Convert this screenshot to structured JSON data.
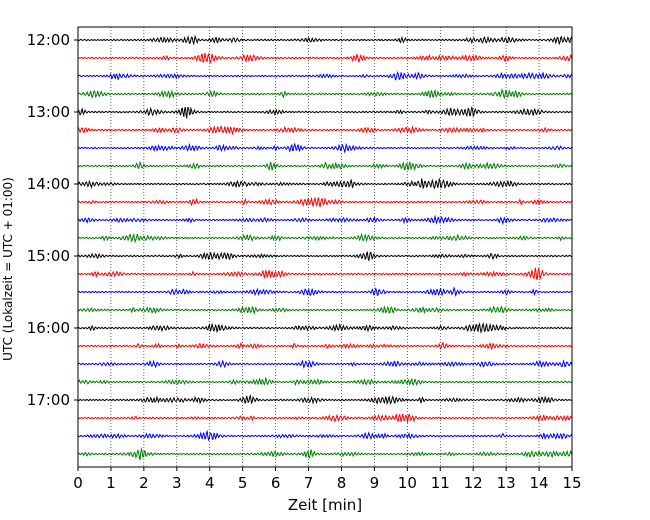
{
  "chart_data": {
    "type": "line",
    "title": "",
    "xlabel": "Zeit  [min]",
    "ylabel": "UTC (Lokalzeit = UTC + 01:00)",
    "xlim": [
      0,
      15
    ],
    "x_ticks": [
      0,
      1,
      2,
      3,
      4,
      5,
      6,
      7,
      8,
      9,
      10,
      11,
      12,
      13,
      14,
      15
    ],
    "x_tick_labels": [
      "0",
      "1",
      "2",
      "3",
      "4",
      "5",
      "6",
      "7",
      "8",
      "9",
      "10",
      "11",
      "12",
      "13",
      "14",
      "15"
    ],
    "y_ticks": [
      "12:00",
      "13:00",
      "14:00",
      "15:00",
      "16:00",
      "17:00"
    ],
    "grid": "vertical dotted at each minute",
    "trace_interval_minutes": 15,
    "trace_colors": [
      "#000000",
      "#ff0000",
      "#0000ff",
      "#008000"
    ],
    "series": [
      {
        "start": "12:00",
        "color": "#000000"
      },
      {
        "start": "12:15",
        "color": "#ff0000"
      },
      {
        "start": "12:30",
        "color": "#0000ff"
      },
      {
        "start": "12:45",
        "color": "#008000"
      },
      {
        "start": "13:00",
        "color": "#000000"
      },
      {
        "start": "13:15",
        "color": "#ff0000"
      },
      {
        "start": "13:30",
        "color": "#0000ff"
      },
      {
        "start": "13:45",
        "color": "#008000"
      },
      {
        "start": "14:00",
        "color": "#000000"
      },
      {
        "start": "14:15",
        "color": "#ff0000"
      },
      {
        "start": "14:30",
        "color": "#0000ff"
      },
      {
        "start": "14:45",
        "color": "#008000"
      },
      {
        "start": "15:00",
        "color": "#000000"
      },
      {
        "start": "15:15",
        "color": "#ff0000"
      },
      {
        "start": "15:30",
        "color": "#0000ff"
      },
      {
        "start": "15:45",
        "color": "#008000"
      },
      {
        "start": "16:00",
        "color": "#000000"
      },
      {
        "start": "16:15",
        "color": "#ff0000"
      },
      {
        "start": "16:30",
        "color": "#0000ff"
      },
      {
        "start": "16:45",
        "color": "#008000"
      },
      {
        "start": "17:00",
        "color": "#000000"
      },
      {
        "start": "17:15",
        "color": "#ff0000"
      },
      {
        "start": "17:30",
        "color": "#0000ff"
      },
      {
        "start": "17:45",
        "color": "#008000"
      }
    ]
  }
}
